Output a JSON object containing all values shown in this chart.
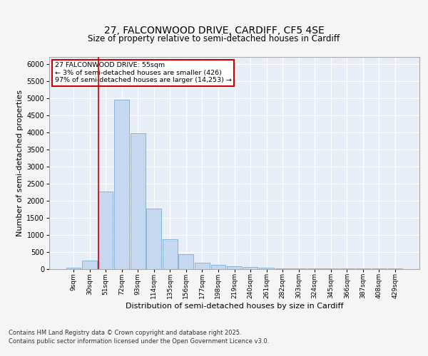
{
  "title_line1": "27, FALCONWOOD DRIVE, CARDIFF, CF5 4SE",
  "title_line2": "Size of property relative to semi-detached houses in Cardiff",
  "xlabel": "Distribution of semi-detached houses by size in Cardiff",
  "ylabel": "Number of semi-detached properties",
  "footer_line1": "Contains HM Land Registry data © Crown copyright and database right 2025.",
  "footer_line2": "Contains public sector information licensed under the Open Government Licence v3.0.",
  "bin_labels": [
    "9sqm",
    "30sqm",
    "51sqm",
    "72sqm",
    "93sqm",
    "114sqm",
    "135sqm",
    "156sqm",
    "177sqm",
    "198sqm",
    "219sqm",
    "240sqm",
    "261sqm",
    "282sqm",
    "303sqm",
    "324sqm",
    "345sqm",
    "366sqm",
    "387sqm",
    "408sqm",
    "429sqm"
  ],
  "bar_values": [
    30,
    230,
    2260,
    4950,
    3970,
    1760,
    860,
    420,
    185,
    105,
    65,
    55,
    30,
    15,
    8,
    5,
    3,
    2,
    1,
    1,
    1
  ],
  "bar_color": "#c5d8f0",
  "bar_edge_color": "#7aadd4",
  "vline_color": "#cc0000",
  "annotation_title": "27 FALCONWOOD DRIVE: 55sqm",
  "annotation_line2": "← 3% of semi-detached houses are smaller (426)",
  "annotation_line3": "97% of semi-detached houses are larger (14,253) →",
  "annotation_box_color": "#cc0000",
  "ylim": [
    0,
    6200
  ],
  "yticks": [
    0,
    500,
    1000,
    1500,
    2000,
    2500,
    3000,
    3500,
    4000,
    4500,
    5000,
    5500,
    6000
  ],
  "bg_color": "#e8eef7",
  "grid_color": "#ffffff",
  "fig_bg": "#f5f5f5"
}
